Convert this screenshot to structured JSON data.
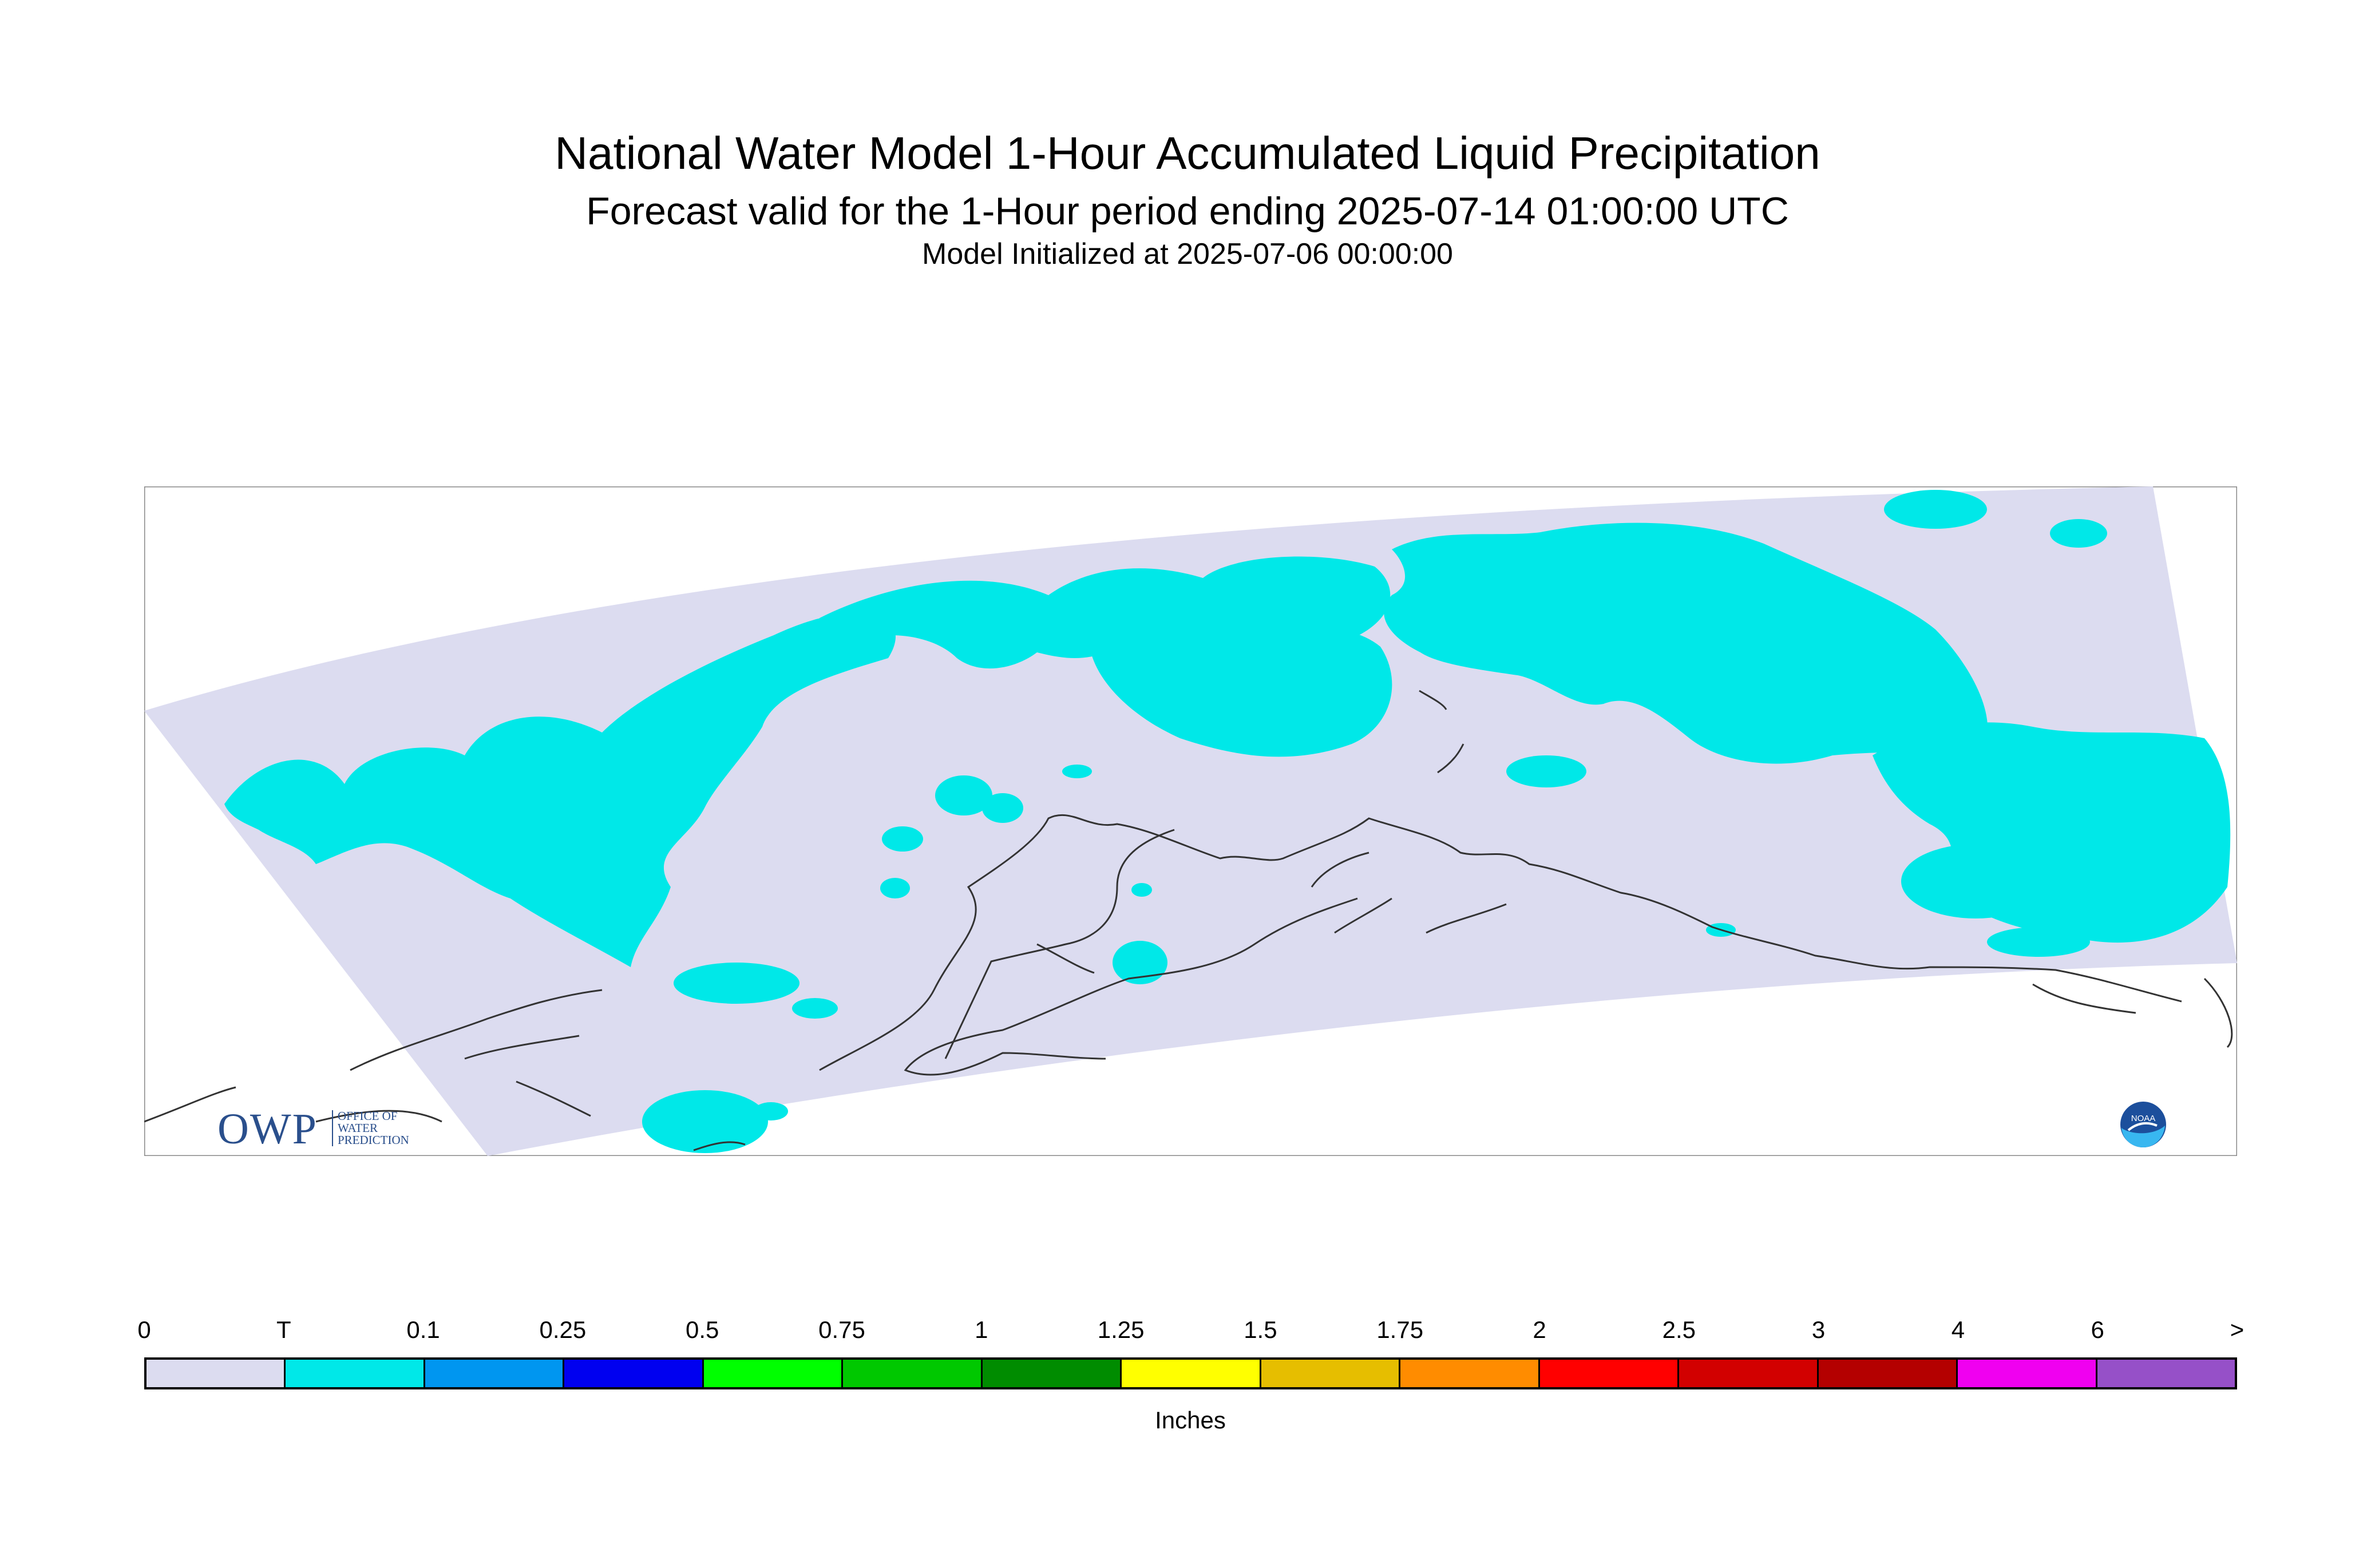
{
  "header": {
    "title": "National Water Model 1-Hour Accumulated Liquid Precipitation",
    "subtitle": "Forecast valid for the 1-Hour period ending 2025-07-14 01:00:00 UTC",
    "init_line": "Model Initialized at 2025-07-06 00:00:00"
  },
  "legend": {
    "labels": [
      "0",
      "T",
      "0.1",
      "0.25",
      "0.5",
      "0.75",
      "1",
      "1.25",
      "1.5",
      "1.75",
      "2",
      "2.5",
      "3",
      "4",
      "6",
      ">"
    ],
    "colors": [
      "#dcdcf0",
      "#00e8e8",
      "#0096f0",
      "#0000f0",
      "#00ff00",
      "#00c800",
      "#008c00",
      "#ffff00",
      "#e6be00",
      "#ff8c00",
      "#ff0000",
      "#d20000",
      "#b40000",
      "#f000f0",
      "#9650c8"
    ],
    "units": "Inches"
  },
  "map": {
    "domain_fill": "#dcdcf0",
    "precip_fill": "#00e8e8",
    "coast_color": "#333333"
  },
  "logos": {
    "owp_mark": "OWP",
    "owp_text": [
      "OFFICE OF",
      "WATER",
      "PREDICTION"
    ],
    "noaa_text": "NOAA"
  }
}
